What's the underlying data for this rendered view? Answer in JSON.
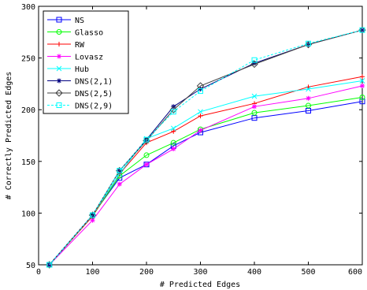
{
  "chart_data": {
    "type": "line",
    "title": "",
    "xlabel": "# Predicted Edges",
    "ylabel": "# Correctly Predicted Edges",
    "xlim": [
      0,
      600
    ],
    "ylim": [
      50,
      300
    ],
    "xticks": [
      0,
      100,
      200,
      300,
      400,
      500,
      600
    ],
    "yticks": [
      50,
      100,
      150,
      200,
      250,
      300
    ],
    "x": [
      20,
      100,
      150,
      200,
      250,
      300,
      400,
      500,
      600
    ],
    "grid": false,
    "legend_position": "top-left",
    "series": [
      {
        "name": "NS",
        "color": "#0000ff",
        "marker": "square",
        "dash": "",
        "values": [
          50,
          98,
          134,
          147,
          165,
          178,
          192,
          199,
          208
        ]
      },
      {
        "name": "Glasso",
        "color": "#00ff00",
        "marker": "circle",
        "dash": "",
        "values": [
          50,
          97,
          136,
          156,
          168,
          181,
          197,
          204,
          212
        ]
      },
      {
        "name": "RW",
        "color": "#ff0000",
        "marker": "plus",
        "dash": "",
        "values": [
          50,
          97,
          138,
          168,
          179,
          194,
          206,
          222,
          232
        ]
      },
      {
        "name": "Lovasz",
        "color": "#ff00ff",
        "marker": "star",
        "dash": "",
        "values": [
          50,
          93,
          128,
          147,
          162,
          180,
          203,
          211,
          223
        ]
      },
      {
        "name": "Hub",
        "color": "#00ffff",
        "marker": "x",
        "dash": "",
        "values": [
          50,
          98,
          138,
          172,
          182,
          198,
          213,
          220,
          228
        ]
      },
      {
        "name": "DNS(2,1)",
        "color": "#000080",
        "marker": "star",
        "dash": "",
        "values": [
          50,
          98,
          141,
          171,
          203,
          220,
          245,
          263,
          277
        ]
      },
      {
        "name": "DNS(2,5)",
        "color": "#404040",
        "marker": "diamond",
        "dash": "",
        "values": [
          50,
          98,
          141,
          170,
          200,
          223,
          244,
          263,
          277
        ]
      },
      {
        "name": "DNS(2,9)",
        "color": "#00ffff",
        "marker": "square",
        "dash": "3,2",
        "values": [
          50,
          98,
          141,
          171,
          198,
          218,
          248,
          264,
          277
        ]
      }
    ]
  }
}
